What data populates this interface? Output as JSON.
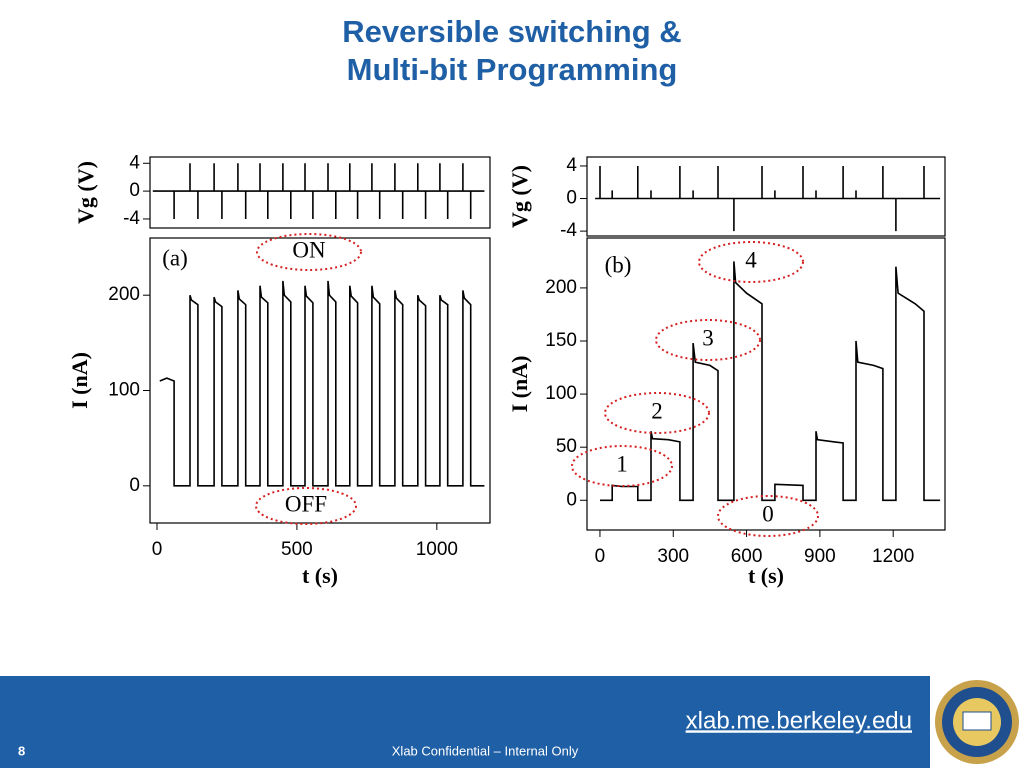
{
  "slide": {
    "title": [
      "Reversible switching &",
      "Multi-bit Programming"
    ],
    "url": "xlab.me.berkeley.edu",
    "page_number": "8",
    "footer": "Xlab Confidential – Internal Only"
  },
  "chart_data": [
    {
      "type": "line",
      "ylabel": "Vg (V)",
      "color": "#000000",
      "xlim": [
        -25,
        1190
      ],
      "ylim": [
        -5.3,
        4.9
      ],
      "yticks": [
        4,
        0,
        -4
      ],
      "x": [
        -15,
        61,
        61,
        61,
        118,
        118,
        118,
        146,
        146,
        146,
        204,
        204,
        204,
        232,
        232,
        232,
        289,
        289,
        289,
        317,
        317,
        317,
        368,
        368,
        368,
        396,
        396,
        396,
        450,
        450,
        450,
        478,
        478,
        478,
        529,
        529,
        529,
        557,
        557,
        557,
        611,
        611,
        611,
        639,
        639,
        639,
        689,
        689,
        689,
        717,
        717,
        717,
        768,
        768,
        768,
        796,
        796,
        796,
        850,
        850,
        850,
        878,
        878,
        878,
        932,
        932,
        932,
        960,
        960,
        960,
        1011,
        1011,
        1011,
        1039,
        1039,
        1039,
        1093,
        1093,
        1093,
        1121,
        1121,
        1121,
        1170
      ],
      "values": [
        0,
        0,
        -4,
        0,
        0,
        4,
        0,
        0,
        -4,
        0,
        0,
        4,
        0,
        0,
        -4,
        0,
        0,
        4,
        0,
        0,
        -4,
        0,
        0,
        4,
        0,
        0,
        -4,
        0,
        0,
        4,
        0,
        0,
        -4,
        0,
        0,
        4,
        0,
        0,
        -4,
        0,
        0,
        4,
        0,
        0,
        -4,
        0,
        0,
        4,
        0,
        0,
        -4,
        0,
        0,
        4,
        0,
        0,
        -4,
        0,
        0,
        4,
        0,
        0,
        -4,
        0,
        0,
        4,
        0,
        0,
        -4,
        0,
        0,
        4,
        0,
        0,
        -4,
        0,
        0,
        4,
        0,
        0,
        -4,
        0,
        0
      ]
    },
    {
      "type": "line",
      "xlabel": "t (s)",
      "ylabel": "I (nA)",
      "color": "#000000",
      "xlim": [
        -25,
        1190
      ],
      "ylim": [
        -39,
        260
      ],
      "xticks": [
        0,
        500,
        1000
      ],
      "yticks": [
        0,
        100,
        200
      ],
      "annotations": [
        "(a)",
        "ON",
        "OFF"
      ],
      "x": [
        10,
        35,
        61,
        61,
        118,
        118,
        123,
        146,
        146,
        204,
        204,
        209,
        232,
        232,
        289,
        289,
        294,
        317,
        317,
        368,
        368,
        373,
        396,
        396,
        450,
        450,
        455,
        478,
        478,
        529,
        529,
        534,
        557,
        557,
        611,
        611,
        616,
        639,
        639,
        689,
        689,
        694,
        717,
        717,
        768,
        768,
        773,
        796,
        796,
        850,
        850,
        855,
        878,
        878,
        932,
        932,
        937,
        960,
        960,
        1011,
        1011,
        1016,
        1039,
        1039,
        1093,
        1093,
        1098,
        1121,
        1121,
        1170
      ],
      "values": [
        110,
        113,
        110,
        0,
        0,
        200,
        195,
        190,
        0,
        0,
        198,
        193,
        188,
        0,
        0,
        205,
        196,
        190,
        0,
        0,
        210,
        198,
        192,
        0,
        0,
        215,
        200,
        193,
        0,
        0,
        210,
        199,
        192,
        0,
        0,
        215,
        200,
        193,
        0,
        0,
        210,
        199,
        192,
        0,
        0,
        210,
        198,
        191,
        0,
        0,
        205,
        197,
        190,
        0,
        0,
        200,
        195,
        189,
        0,
        0,
        200,
        195,
        190,
        0,
        0,
        205,
        197,
        190,
        0,
        0
      ]
    },
    {
      "type": "line",
      "ylabel": "Vg (V)",
      "color": "#000000",
      "xlim": [
        -53,
        1412
      ],
      "ylim": [
        -4.6,
        5.1
      ],
      "yticks": [
        4,
        0,
        -4
      ],
      "x": [
        -20,
        0,
        0,
        0,
        50,
        50,
        50,
        155,
        155,
        155,
        209,
        209,
        209,
        327,
        327,
        327,
        381,
        381,
        381,
        483,
        483,
        483,
        548,
        548,
        548,
        663,
        663,
        663,
        716,
        716,
        716,
        831,
        831,
        831,
        884,
        884,
        884,
        995,
        995,
        995,
        1048,
        1048,
        1048,
        1158,
        1158,
        1158,
        1211,
        1211,
        1211,
        1326,
        1326,
        1326,
        1392
      ],
      "values": [
        0,
        0,
        4,
        0,
        0,
        1,
        0,
        0,
        4,
        0,
        0,
        1,
        0,
        0,
        4,
        0,
        0,
        1,
        0,
        0,
        4,
        0,
        0,
        -4,
        0,
        0,
        4,
        0,
        0,
        1,
        0,
        0,
        4,
        0,
        0,
        1,
        0,
        0,
        4,
        0,
        0,
        1,
        0,
        0,
        4,
        0,
        0,
        -4,
        0,
        0,
        4,
        0,
        0
      ]
    },
    {
      "type": "line",
      "xlabel": "t (s)",
      "ylabel": "I (nA)",
      "color": "#000000",
      "xlim": [
        -53,
        1412
      ],
      "ylim": [
        -28,
        247
      ],
      "xticks": [
        0,
        300,
        600,
        900,
        1200
      ],
      "yticks": [
        0,
        50,
        100,
        150,
        200
      ],
      "annotations": [
        "(b)",
        "4",
        "3",
        "2",
        "1",
        "0"
      ],
      "x": [
        0,
        50,
        50,
        90,
        155,
        155,
        209,
        209,
        215,
        280,
        327,
        327,
        381,
        381,
        390,
        450,
        483,
        483,
        548,
        548,
        555,
        600,
        663,
        663,
        716,
        716,
        831,
        831,
        884,
        884,
        890,
        960,
        995,
        995,
        1048,
        1048,
        1055,
        1120,
        1158,
        1158,
        1211,
        1211,
        1220,
        1290,
        1326,
        1326,
        1392
      ],
      "values": [
        0,
        0,
        14,
        13,
        13,
        0,
        0,
        65,
        58,
        57,
        55,
        0,
        0,
        148,
        130,
        127,
        122,
        0,
        0,
        225,
        205,
        195,
        185,
        0,
        0,
        15,
        14,
        0,
        0,
        65,
        57,
        55,
        54,
        0,
        0,
        150,
        130,
        127,
        124,
        0,
        0,
        220,
        195,
        185,
        178,
        0,
        0
      ]
    }
  ]
}
